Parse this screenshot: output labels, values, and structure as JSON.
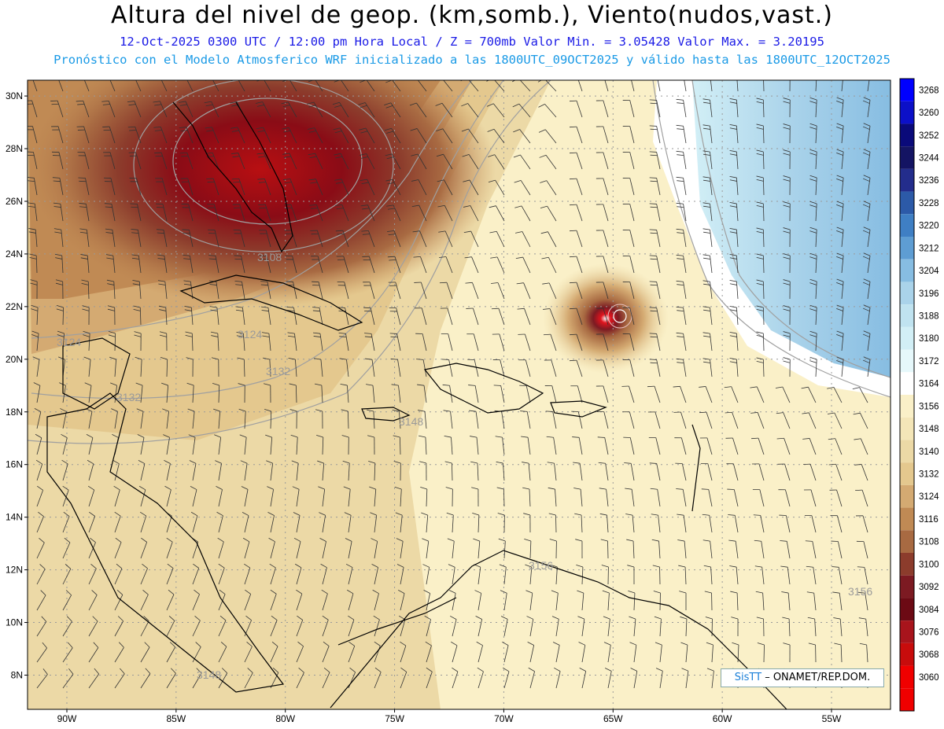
{
  "header": {
    "title": "Altura del nivel de geop. (km,somb.), Viento(nudos,vast.)",
    "subtitle1": "12-Oct-2025  0300 UTC / 12:00 pm Hora Local / Z = 700mb   Valor Min. = 3.05428  Valor Max. = 3.20195",
    "subtitle2": "Pronóstico con el Modelo Atmosferico WRF inicializado a las 1800UTC_09OCT2025 y válido hasta las  1800UTC_12OCT2025"
  },
  "map": {
    "lat_labels": [
      "30N",
      "28N",
      "26N",
      "24N",
      "22N",
      "20N",
      "18N",
      "16N",
      "14N",
      "12N",
      "10N",
      "8N"
    ],
    "lat_values": [
      30,
      28,
      26,
      24,
      22,
      20,
      18,
      16,
      14,
      12,
      10,
      8
    ],
    "lon_labels": [
      "90W",
      "85W",
      "80W",
      "75W",
      "70W",
      "65W",
      "60W",
      "55W"
    ],
    "lon_values": [
      -90,
      -85,
      -80,
      -75,
      -70,
      -65,
      -60,
      -55
    ],
    "lat_range": [
      6.7,
      30.6
    ],
    "lon_range": [
      -91.8,
      -52.3
    ],
    "contour_labels": [
      "3108",
      "3124",
      "3124",
      "3132",
      "3132",
      "3148",
      "3148",
      "3156",
      "3156"
    ]
  },
  "colorbar": {
    "levels": [
      "3268",
      "3260",
      "3252",
      "3244",
      "3236",
      "3228",
      "3220",
      "3212",
      "3204",
      "3196",
      "3188",
      "3180",
      "3172",
      "3164",
      "3156",
      "3148",
      "3140",
      "3132",
      "3124",
      "3116",
      "3108",
      "3100",
      "3092",
      "3084",
      "3076",
      "3068",
      "3060"
    ],
    "colors": [
      "#0000ff",
      "#0c10c8",
      "#0a0a7a",
      "#141463",
      "#232d8c",
      "#2c5aa8",
      "#3f7fc4",
      "#5e9dd3",
      "#87bde2",
      "#aad3ea",
      "#c0e3f0",
      "#d2eff6",
      "#e6f8fb",
      "#ffffff",
      "#faf0c8",
      "#f4e6b8",
      "#ecd9a6",
      "#e4c88e",
      "#d4aa72",
      "#c08a54",
      "#a86a42",
      "#8c3c2c",
      "#7c1a22",
      "#6c0a14",
      "#a8141c",
      "#c80c0c",
      "#f00000"
    ]
  },
  "credit": {
    "logo": "SisTT",
    "text": " –  ONAMET/REP.DOM."
  }
}
